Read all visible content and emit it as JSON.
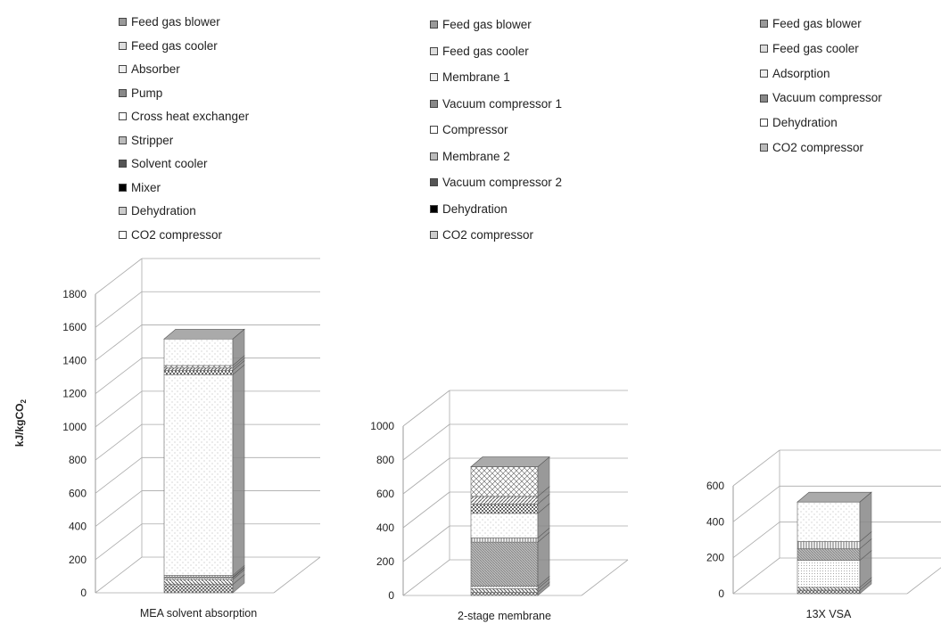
{
  "chart_data": [
    {
      "type": "bar",
      "stacked": true,
      "title": "",
      "category": "MEA solvent absorption",
      "ylabel": "kJ/kgCO",
      "ylabel_subscript": "2",
      "ylim": [
        0,
        1800
      ],
      "yticks": [
        0,
        200,
        400,
        600,
        800,
        1000,
        1200,
        1400,
        1600,
        1800
      ],
      "grid": true,
      "legend_position": "top",
      "series": [
        {
          "name": "Feed gas blower",
          "value": 50
        },
        {
          "name": "Feed gas cooler",
          "value": 30
        },
        {
          "name": "Absorber",
          "value": 10
        },
        {
          "name": "Pump",
          "value": 5
        },
        {
          "name": "Cross heat exchanger",
          "value": 10
        },
        {
          "name": "Stripper",
          "value": 1210
        },
        {
          "name": "Solvent cooler",
          "value": 25
        },
        {
          "name": "Mixer",
          "value": 15
        },
        {
          "name": "Dehydration",
          "value": 15
        },
        {
          "name": "CO2 compressor",
          "value": 160
        }
      ]
    },
    {
      "type": "bar",
      "stacked": true,
      "title": "",
      "category": "2-stage membrane",
      "ylim": [
        0,
        1000
      ],
      "yticks": [
        0,
        200,
        400,
        600,
        800,
        1000
      ],
      "grid": true,
      "legend_position": "top",
      "series": [
        {
          "name": "Feed gas blower",
          "value": 20
        },
        {
          "name": "Feed gas cooler",
          "value": 20
        },
        {
          "name": "Membrane 1",
          "value": 15
        },
        {
          "name": "Vacuum compressor 1",
          "value": 260
        },
        {
          "name": "Compressor",
          "value": 25
        },
        {
          "name": "Membrane 2",
          "value": 145
        },
        {
          "name": "Vacuum compressor 2",
          "value": 55
        },
        {
          "name": "Dehydration",
          "value": 45
        },
        {
          "name": "CO2 compressor",
          "value": 175
        }
      ]
    },
    {
      "type": "bar",
      "stacked": true,
      "title": "",
      "category": "13X VSA",
      "ylim": [
        0,
        600
      ],
      "yticks": [
        0,
        200,
        400,
        600
      ],
      "grid": true,
      "legend_position": "top",
      "series": [
        {
          "name": "Feed gas blower",
          "value": 20
        },
        {
          "name": "Feed gas cooler",
          "value": 15
        },
        {
          "name": "Adsorption",
          "value": 150
        },
        {
          "name": "Vacuum compressor",
          "value": 65
        },
        {
          "name": "Dehydration",
          "value": 40
        },
        {
          "name": "CO2 compressor",
          "value": 220
        }
      ]
    }
  ]
}
